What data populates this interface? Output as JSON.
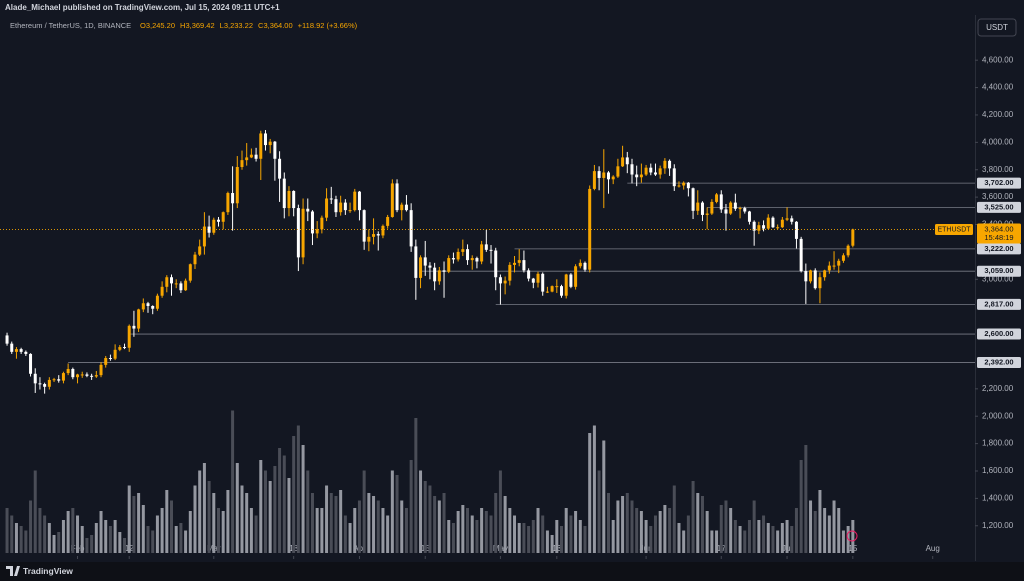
{
  "header": {
    "publisher": "Alade_Michael published on TradingView.com, Jul 15, 2024 09:11 UTC+1",
    "symbol": "Ethereum / TetherUS, 1D, BINANCE",
    "ohlc_labels": [
      "O3,245.20",
      "H3,369.42",
      "L3,233.22",
      "C3,364.00"
    ],
    "change": "+118.92 (+3.66%)"
  },
  "currency_button": "USDT",
  "footer": {
    "brand": "TradingView"
  },
  "chart_data": {
    "type": "candlestick",
    "up_color": "#f7a600",
    "down_color": "#ffffff",
    "volume_up_color": "#9598a1",
    "volume_down_color": "#4a4d57",
    "ylim": [
      950,
      4930
    ],
    "xlim": [
      -1.5,
      206
    ],
    "volume_lim": [
      0,
      100
    ],
    "yticks": [
      {
        "value": 4600,
        "label": "4,600.00"
      },
      {
        "value": 4400,
        "label": "4,400.00"
      },
      {
        "value": 4200,
        "label": "4,200.00"
      },
      {
        "value": 4000,
        "label": "4,000.00"
      },
      {
        "value": 3800,
        "label": "3,800.00"
      },
      {
        "value": 3600,
        "label": "3,600.00"
      },
      {
        "value": 3400,
        "label": "3,400.00"
      },
      {
        "value": 3000,
        "label": "3,000.00"
      },
      {
        "value": 2200,
        "label": "2,200.00"
      },
      {
        "value": 2000,
        "label": "2,000.00"
      },
      {
        "value": 1800,
        "label": "1,800.00"
      },
      {
        "value": 1600,
        "label": "1,600.00"
      },
      {
        "value": 1400,
        "label": "1,400.00"
      },
      {
        "value": 1200,
        "label": "1,200.00"
      }
    ],
    "xticks": [
      {
        "value": 15,
        "label": "Feb"
      },
      {
        "value": 26,
        "label": "12"
      },
      {
        "value": 44,
        "label": "Mar"
      },
      {
        "value": 61,
        "label": "18"
      },
      {
        "value": 75,
        "label": "Apr"
      },
      {
        "value": 89,
        "label": "15"
      },
      {
        "value": 105,
        "label": "May"
      },
      {
        "value": 117,
        "label": "13"
      },
      {
        "value": 136,
        "label": "Jun"
      },
      {
        "value": 152,
        "label": "17"
      },
      {
        "value": 166,
        "label": "Jul"
      },
      {
        "value": 180,
        "label": "15"
      },
      {
        "value": 197,
        "label": "Aug"
      }
    ],
    "levels": [
      {
        "value": 3702,
        "label": "3,702.00",
        "start": 132
      },
      {
        "value": 3525,
        "label": "3,525.00",
        "start": 149
      },
      {
        "value": 3222,
        "label": "3,222.00",
        "start": 108
      },
      {
        "value": 3059,
        "label": "3,059.00",
        "start": 88
      },
      {
        "value": 2817,
        "label": "2,817.00",
        "start": 104
      },
      {
        "value": 2600,
        "label": "2,600.00",
        "start": 26
      },
      {
        "value": 2392,
        "label": "2,392.00",
        "start": 13
      }
    ],
    "last_price": {
      "value": 3364,
      "symbol": "ETHUSDT",
      "label": "3,364.00",
      "countdown": "15:48:19"
    },
    "ohlc": [
      [
        2590,
        2610,
        2515,
        2530
      ],
      [
        2530,
        2545,
        2455,
        2470
      ],
      [
        2470,
        2505,
        2420,
        2490
      ],
      [
        2490,
        2500,
        2455,
        2470
      ],
      [
        2470,
        2480,
        2440,
        2455
      ],
      [
        2455,
        2460,
        2290,
        2310
      ],
      [
        2310,
        2350,
        2170,
        2240
      ],
      [
        2240,
        2285,
        2195,
        2235
      ],
      [
        2235,
        2245,
        2165,
        2215
      ],
      [
        2215,
        2285,
        2195,
        2265
      ],
      [
        2265,
        2280,
        2250,
        2270
      ],
      [
        2270,
        2300,
        2245,
        2260
      ],
      [
        2260,
        2325,
        2240,
        2315
      ],
      [
        2315,
        2385,
        2300,
        2345
      ],
      [
        2345,
        2355,
        2270,
        2285
      ],
      [
        2285,
        2310,
        2240,
        2305
      ],
      [
        2305,
        2325,
        2280,
        2305
      ],
      [
        2305,
        2320,
        2285,
        2295
      ],
      [
        2295,
        2310,
        2265,
        2290
      ],
      [
        2290,
        2330,
        2280,
        2300
      ],
      [
        2300,
        2395,
        2285,
        2375
      ],
      [
        2375,
        2440,
        2355,
        2425
      ],
      [
        2425,
        2450,
        2405,
        2420
      ],
      [
        2420,
        2525,
        2410,
        2485
      ],
      [
        2485,
        2520,
        2475,
        2505
      ],
      [
        2505,
        2530,
        2490,
        2500
      ],
      [
        2500,
        2670,
        2470,
        2660
      ],
      [
        2660,
        2770,
        2580,
        2640
      ],
      [
        2640,
        2785,
        2615,
        2780
      ],
      [
        2780,
        2860,
        2760,
        2825
      ],
      [
        2825,
        2835,
        2755,
        2805
      ],
      [
        2805,
        2810,
        2745,
        2785
      ],
      [
        2785,
        2895,
        2770,
        2880
      ],
      [
        2880,
        2985,
        2865,
        2945
      ],
      [
        2945,
        3030,
        2905,
        3015
      ],
      [
        3015,
        3035,
        2880,
        2970
      ],
      [
        2970,
        3000,
        2935,
        2970
      ],
      [
        2970,
        2985,
        2900,
        2920
      ],
      [
        2920,
        3005,
        2915,
        2990
      ],
      [
        2990,
        3115,
        2975,
        3110
      ],
      [
        3110,
        3200,
        3075,
        3180
      ],
      [
        3180,
        3290,
        3170,
        3240
      ],
      [
        3240,
        3490,
        3180,
        3385
      ],
      [
        3385,
        3465,
        3305,
        3340
      ],
      [
        3340,
        3450,
        3325,
        3435
      ],
      [
        3435,
        3455,
        3385,
        3420
      ],
      [
        3420,
        3495,
        3365,
        3490
      ],
      [
        3490,
        3640,
        3470,
        3630
      ],
      [
        3630,
        3825,
        3355,
        3555
      ],
      [
        3555,
        3900,
        3520,
        3820
      ],
      [
        3820,
        3940,
        3800,
        3870
      ],
      [
        3870,
        3995,
        3830,
        3890
      ],
      [
        3890,
        3955,
        3885,
        3910
      ],
      [
        3910,
        3960,
        3860,
        3880
      ],
      [
        3880,
        4085,
        3725,
        4065
      ],
      [
        4065,
        4090,
        3940,
        3980
      ],
      [
        3980,
        4025,
        3920,
        4005
      ],
      [
        4005,
        4010,
        3720,
        3880
      ],
      [
        3880,
        3935,
        3565,
        3735
      ],
      [
        3735,
        3780,
        3445,
        3520
      ],
      [
        3520,
        3680,
        3460,
        3645
      ],
      [
        3645,
        3650,
        3460,
        3520
      ],
      [
        3520,
        3545,
        3060,
        3160
      ],
      [
        3160,
        3590,
        3110,
        3515
      ],
      [
        3515,
        3590,
        3425,
        3495
      ],
      [
        3495,
        3505,
        3250,
        3335
      ],
      [
        3335,
        3425,
        3300,
        3365
      ],
      [
        3365,
        3465,
        3335,
        3450
      ],
      [
        3450,
        3665,
        3425,
        3590
      ],
      [
        3590,
        3675,
        3550,
        3585
      ],
      [
        3585,
        3610,
        3455,
        3490
      ],
      [
        3490,
        3610,
        3465,
        3560
      ],
      [
        3560,
        3585,
        3470,
        3505
      ],
      [
        3505,
        3560,
        3485,
        3505
      ],
      [
        3505,
        3660,
        3495,
        3640
      ],
      [
        3640,
        3645,
        3430,
        3505
      ],
      [
        3505,
        3510,
        3215,
        3275
      ],
      [
        3275,
        3365,
        3205,
        3310
      ],
      [
        3310,
        3445,
        3255,
        3330
      ],
      [
        3330,
        3350,
        3210,
        3320
      ],
      [
        3320,
        3400,
        3300,
        3390
      ],
      [
        3390,
        3470,
        3370,
        3455
      ],
      [
        3455,
        3730,
        3450,
        3700
      ],
      [
        3700,
        3730,
        3490,
        3505
      ],
      [
        3505,
        3560,
        3430,
        3545
      ],
      [
        3545,
        3615,
        3495,
        3505
      ],
      [
        3505,
        3555,
        3200,
        3240
      ],
      [
        3240,
        3290,
        2850,
        3010
      ],
      [
        3010,
        3175,
        2935,
        3160
      ],
      [
        3160,
        3280,
        3025,
        3100
      ],
      [
        3100,
        3125,
        3000,
        3085
      ],
      [
        3085,
        3120,
        2920,
        2985
      ],
      [
        2985,
        3090,
        2960,
        3065
      ],
      [
        3065,
        3130,
        2865,
        3055
      ],
      [
        3055,
        3175,
        3045,
        3155
      ],
      [
        3155,
        3195,
        3115,
        3145
      ],
      [
        3145,
        3225,
        3130,
        3200
      ],
      [
        3200,
        3290,
        3170,
        3220
      ],
      [
        3220,
        3255,
        3105,
        3140
      ],
      [
        3140,
        3175,
        3070,
        3155
      ],
      [
        3155,
        3165,
        3080,
        3130
      ],
      [
        3130,
        3280,
        3110,
        3255
      ],
      [
        3255,
        3360,
        3200,
        3215
      ],
      [
        3215,
        3250,
        3115,
        3210
      ],
      [
        3210,
        3230,
        2920,
        3015
      ],
      [
        3015,
        3035,
        2815,
        2970
      ],
      [
        2970,
        3020,
        2890,
        2990
      ],
      [
        2990,
        3125,
        2955,
        3105
      ],
      [
        3105,
        3170,
        3050,
        3120
      ],
      [
        3120,
        3220,
        3095,
        3140
      ],
      [
        3140,
        3210,
        3050,
        3065
      ],
      [
        3065,
        3080,
        2985,
        3005
      ],
      [
        3005,
        3010,
        2935,
        2975
      ],
      [
        2975,
        3055,
        2940,
        3040
      ],
      [
        3040,
        3050,
        2880,
        2910
      ],
      [
        2910,
        2945,
        2900,
        2910
      ],
      [
        2910,
        2955,
        2905,
        2950
      ],
      [
        2950,
        3000,
        2900,
        2950
      ],
      [
        2950,
        2960,
        2865,
        2880
      ],
      [
        2880,
        3040,
        2860,
        3035
      ],
      [
        3035,
        3045,
        2935,
        2945
      ],
      [
        2945,
        3110,
        2925,
        3095
      ],
      [
        3095,
        3145,
        3080,
        3120
      ],
      [
        3120,
        3130,
        3055,
        3070
      ],
      [
        3070,
        3685,
        3050,
        3660
      ],
      [
        3660,
        3835,
        3650,
        3790
      ],
      [
        3790,
        3825,
        3650,
        3740
      ],
      [
        3740,
        3950,
        3520,
        3780
      ],
      [
        3780,
        3790,
        3625,
        3730
      ],
      [
        3730,
        3760,
        3695,
        3750
      ],
      [
        3750,
        3880,
        3740,
        3825
      ],
      [
        3825,
        3975,
        3820,
        3890
      ],
      [
        3890,
        3930,
        3775,
        3840
      ],
      [
        3840,
        3880,
        3700,
        3765
      ],
      [
        3765,
        3830,
        3680,
        3745
      ],
      [
        3745,
        3845,
        3705,
        3765
      ],
      [
        3765,
        3835,
        3755,
        3815
      ],
      [
        3815,
        3845,
        3760,
        3780
      ],
      [
        3780,
        3845,
        3755,
        3765
      ],
      [
        3765,
        3830,
        3735,
        3810
      ],
      [
        3810,
        3885,
        3770,
        3865
      ],
      [
        3865,
        3875,
        3755,
        3810
      ],
      [
        3810,
        3840,
        3645,
        3680
      ],
      [
        3680,
        3715,
        3670,
        3685
      ],
      [
        3685,
        3715,
        3655,
        3705
      ],
      [
        3705,
        3710,
        3605,
        3665
      ],
      [
        3665,
        3670,
        3440,
        3500
      ],
      [
        3500,
        3650,
        3470,
        3560
      ],
      [
        3560,
        3570,
        3425,
        3470
      ],
      [
        3470,
        3525,
        3365,
        3480
      ],
      [
        3480,
        3585,
        3470,
        3565
      ],
      [
        3565,
        3630,
        3555,
        3620
      ],
      [
        3620,
        3650,
        3485,
        3510
      ],
      [
        3510,
        3550,
        3355,
        3480
      ],
      [
        3480,
        3570,
        3470,
        3560
      ],
      [
        3560,
        3625,
        3500,
        3515
      ],
      [
        3515,
        3530,
        3445,
        3520
      ],
      [
        3520,
        3530,
        3480,
        3495
      ],
      [
        3495,
        3500,
        3400,
        3420
      ],
      [
        3420,
        3430,
        3245,
        3355
      ],
      [
        3355,
        3420,
        3330,
        3395
      ],
      [
        3395,
        3430,
        3350,
        3370
      ],
      [
        3370,
        3475,
        3365,
        3450
      ],
      [
        3450,
        3460,
        3375,
        3380
      ],
      [
        3380,
        3400,
        3365,
        3380
      ],
      [
        3380,
        3455,
        3375,
        3435
      ],
      [
        3435,
        3525,
        3425,
        3445
      ],
      [
        3445,
        3465,
        3400,
        3420
      ],
      [
        3420,
        3425,
        3225,
        3295
      ],
      [
        3295,
        3310,
        3050,
        3060
      ],
      [
        3060,
        3115,
        2820,
        2985
      ],
      [
        2985,
        3070,
        2970,
        3065
      ],
      [
        3065,
        3080,
        2925,
        2935
      ],
      [
        2935,
        3050,
        2825,
        3015
      ],
      [
        3015,
        3070,
        2990,
        3065
      ],
      [
        3065,
        3130,
        3040,
        3100
      ],
      [
        3100,
        3205,
        3070,
        3100
      ],
      [
        3100,
        3150,
        3045,
        3135
      ],
      [
        3135,
        3190,
        3120,
        3175
      ],
      [
        3175,
        3255,
        3160,
        3245
      ],
      [
        3245.2,
        3369.42,
        3233.22,
        3364
      ]
    ],
    "volume": [
      30,
      25,
      20,
      18,
      15,
      35,
      55,
      30,
      25,
      20,
      12,
      14,
      22,
      28,
      30,
      25,
      18,
      10,
      12,
      20,
      28,
      22,
      18,
      22,
      14,
      10,
      45,
      38,
      40,
      32,
      18,
      15,
      25,
      30,
      42,
      35,
      18,
      20,
      15,
      28,
      45,
      55,
      60,
      48,
      40,
      30,
      28,
      42,
      95,
      60,
      45,
      40,
      30,
      25,
      62,
      55,
      48,
      58,
      70,
      65,
      50,
      78,
      85,
      72,
      55,
      40,
      30,
      30,
      45,
      40,
      38,
      42,
      25,
      20,
      30,
      35,
      55,
      40,
      38,
      35,
      30,
      25,
      55,
      52,
      35,
      30,
      62,
      90,
      55,
      48,
      45,
      38,
      35,
      40,
      22,
      20,
      28,
      32,
      30,
      25,
      22,
      30,
      28,
      25,
      40,
      55,
      38,
      30,
      25,
      20,
      20,
      18,
      22,
      30,
      25,
      15,
      12,
      22,
      18,
      30,
      25,
      28,
      22,
      18,
      80,
      85,
      55,
      75,
      40,
      22,
      35,
      38,
      40,
      35,
      30,
      28,
      22,
      18,
      25,
      28,
      32,
      30,
      45,
      20,
      15,
      25,
      48,
      40,
      38,
      28,
      15,
      15,
      32,
      35,
      30,
      22,
      18,
      15,
      22,
      35,
      22,
      25,
      20,
      18,
      15,
      20,
      22,
      18,
      30,
      62,
      72,
      35,
      28,
      42,
      30,
      25,
      35,
      30,
      15,
      18,
      22
    ]
  }
}
